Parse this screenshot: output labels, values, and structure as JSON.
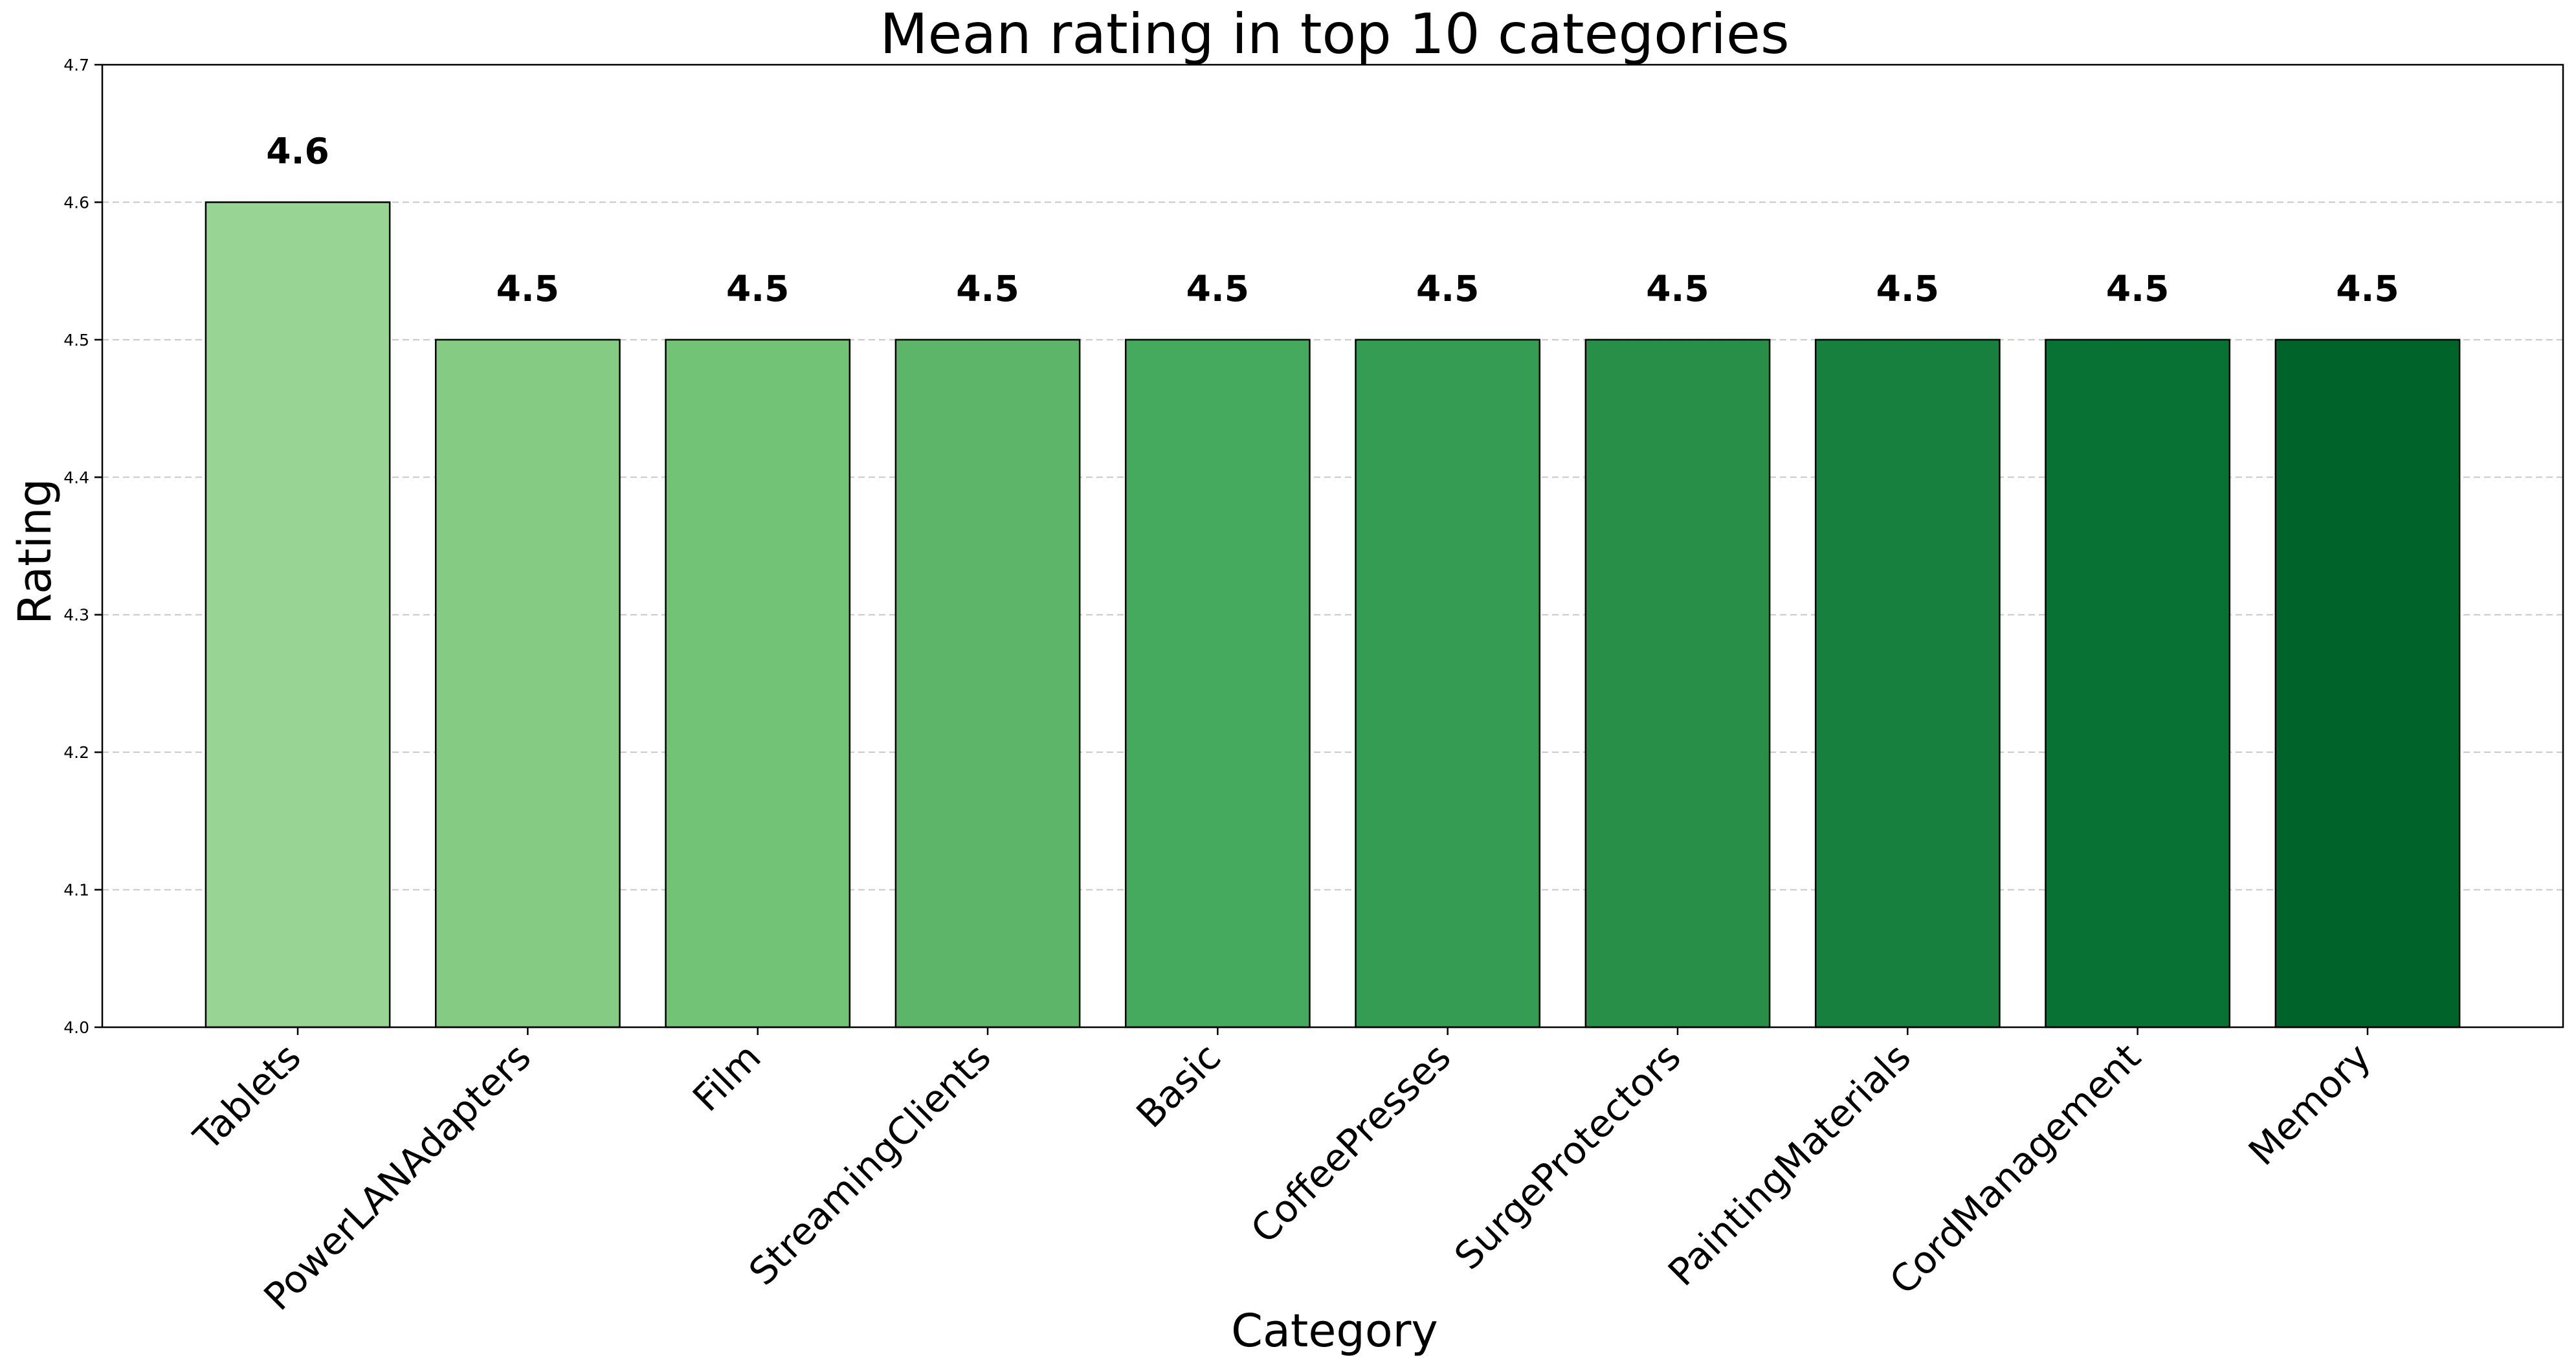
{
  "chart_data": {
    "type": "bar",
    "title": "Mean rating in top 10 categories",
    "xlabel": "Category",
    "ylabel": "Rating",
    "categories": [
      "Tablets",
      "PowerLANAdapters",
      "Film",
      "StreamingClients",
      "Basic",
      "CoffeePresses",
      "SurgeProtectors",
      "PaintingMaterials",
      "CordManagement",
      "Memory"
    ],
    "values": [
      4.6,
      4.5,
      4.5,
      4.5,
      4.5,
      4.5,
      4.5,
      4.5,
      4.5,
      4.5
    ],
    "data_labels": [
      "4.6",
      "4.5",
      "4.5",
      "4.5",
      "4.5",
      "4.5",
      "4.5",
      "4.5",
      "4.5",
      "4.5"
    ],
    "ylim": [
      4.0,
      4.7
    ],
    "yticks": [
      "4.0",
      "4.1",
      "4.2",
      "4.3",
      "4.4",
      "4.5",
      "4.6",
      "4.7"
    ],
    "grid": "horizontal dashed",
    "colors": [
      "#98d494",
      "#86cb84",
      "#73c376",
      "#5cb569",
      "#45a95e",
      "#359c53",
      "#278f48",
      "#17803f",
      "#077233",
      "#00632a"
    ]
  }
}
